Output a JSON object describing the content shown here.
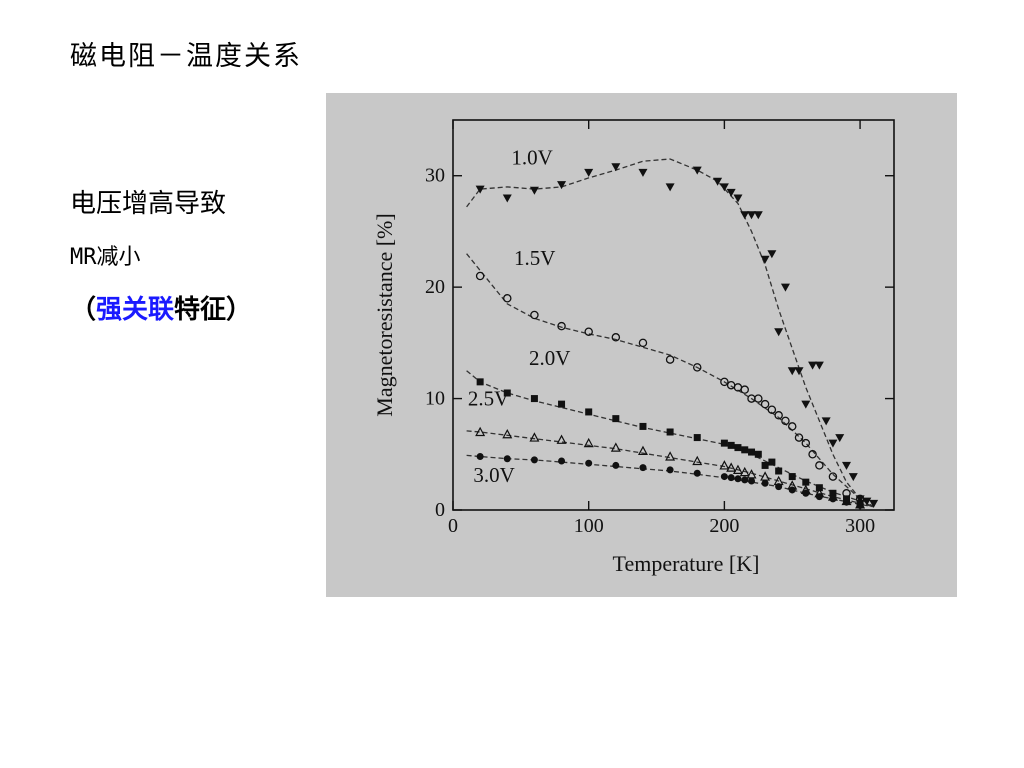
{
  "slide": {
    "title": "磁电阻－温度关系",
    "note_line1": "电压增高导致",
    "note_line2": "MR减小",
    "note_line3_open": "（",
    "note_line3_highlight": "强关联",
    "note_line3_rest": "特征",
    "note_line3_close": "）",
    "highlight_color": "#1a1aff"
  },
  "chart_data": {
    "type": "scatter",
    "title": "",
    "xlabel": "Temperature [K]",
    "ylabel": "Magnetoresistance [%]",
    "xlim": [
      0,
      325
    ],
    "ylim": [
      0,
      35
    ],
    "xticks": [
      0,
      100,
      200,
      300
    ],
    "yticks": [
      0,
      10,
      20,
      30
    ],
    "grid": false,
    "series": [
      {
        "name": "1.0V",
        "marker": "triangle-down",
        "label_at": [
          43,
          31
        ],
        "points": [
          [
            20,
            28.8
          ],
          [
            40,
            28
          ],
          [
            60,
            28.7
          ],
          [
            80,
            29.2
          ],
          [
            100,
            30.3
          ],
          [
            120,
            30.8
          ],
          [
            140,
            30.3
          ],
          [
            160,
            29
          ],
          [
            180,
            30.5
          ],
          [
            195,
            29.5
          ],
          [
            200,
            29
          ],
          [
            205,
            28.5
          ],
          [
            210,
            28
          ],
          [
            215,
            26.5
          ],
          [
            220,
            26.5
          ],
          [
            225,
            26.5
          ],
          [
            230,
            22.5
          ],
          [
            235,
            23
          ],
          [
            240,
            16
          ],
          [
            245,
            20
          ],
          [
            250,
            12.5
          ],
          [
            255,
            12.5
          ],
          [
            260,
            9.5
          ],
          [
            265,
            13
          ],
          [
            270,
            13
          ],
          [
            275,
            8
          ],
          [
            280,
            6
          ],
          [
            285,
            6.5
          ],
          [
            290,
            4
          ],
          [
            295,
            3
          ],
          [
            300,
            1
          ],
          [
            305,
            0.8
          ],
          [
            310,
            0.6
          ]
        ],
        "curve": [
          [
            10,
            27.2
          ],
          [
            20,
            28.8
          ],
          [
            40,
            29
          ],
          [
            60,
            28.8
          ],
          [
            80,
            29
          ],
          [
            100,
            29.8
          ],
          [
            120,
            30.5
          ],
          [
            140,
            31.3
          ],
          [
            160,
            31.5
          ],
          [
            180,
            30.5
          ],
          [
            195,
            29.5
          ],
          [
            210,
            27.5
          ],
          [
            220,
            25
          ],
          [
            230,
            22
          ],
          [
            240,
            18
          ],
          [
            250,
            14.5
          ],
          [
            260,
            11
          ],
          [
            270,
            8
          ],
          [
            280,
            5
          ],
          [
            290,
            2.5
          ],
          [
            300,
            1
          ],
          [
            310,
            0.3
          ]
        ]
      },
      {
        "name": "1.5V",
        "marker": "open-circle",
        "label_at": [
          45,
          22
        ],
        "points": [
          [
            20,
            21
          ],
          [
            40,
            19
          ],
          [
            60,
            17.5
          ],
          [
            80,
            16.5
          ],
          [
            100,
            16
          ],
          [
            120,
            15.5
          ],
          [
            140,
            15
          ],
          [
            160,
            13.5
          ],
          [
            180,
            12.8
          ],
          [
            200,
            11.5
          ],
          [
            205,
            11.2
          ],
          [
            210,
            11
          ],
          [
            215,
            10.8
          ],
          [
            220,
            10
          ],
          [
            225,
            10
          ],
          [
            230,
            9.5
          ],
          [
            235,
            9
          ],
          [
            240,
            8.5
          ],
          [
            245,
            8
          ],
          [
            250,
            7.5
          ],
          [
            255,
            6.5
          ],
          [
            260,
            6
          ],
          [
            265,
            5
          ],
          [
            270,
            4
          ],
          [
            280,
            3
          ],
          [
            290,
            1.5
          ],
          [
            300,
            1
          ]
        ],
        "curve": [
          [
            10,
            23
          ],
          [
            20,
            21.5
          ],
          [
            40,
            18.5
          ],
          [
            60,
            17.2
          ],
          [
            80,
            16.4
          ],
          [
            100,
            15.8
          ],
          [
            120,
            15.3
          ],
          [
            140,
            14.6
          ],
          [
            160,
            13.9
          ],
          [
            180,
            12.8
          ],
          [
            200,
            11.5
          ],
          [
            220,
            10
          ],
          [
            240,
            8.3
          ],
          [
            260,
            6
          ],
          [
            280,
            3.2
          ],
          [
            300,
            1
          ],
          [
            310,
            0.3
          ]
        ]
      },
      {
        "name": "2.0V",
        "marker": "filled-square",
        "label_at": [
          56,
          13
        ],
        "points": [
          [
            20,
            11.5
          ],
          [
            40,
            10.5
          ],
          [
            60,
            10
          ],
          [
            80,
            9.5
          ],
          [
            100,
            8.8
          ],
          [
            120,
            8.2
          ],
          [
            140,
            7.5
          ],
          [
            160,
            7
          ],
          [
            180,
            6.5
          ],
          [
            200,
            6
          ],
          [
            205,
            5.8
          ],
          [
            210,
            5.6
          ],
          [
            215,
            5.4
          ],
          [
            220,
            5.2
          ],
          [
            225,
            5
          ],
          [
            230,
            4
          ],
          [
            235,
            4.3
          ],
          [
            240,
            3.5
          ],
          [
            250,
            3
          ],
          [
            260,
            2.5
          ],
          [
            270,
            2
          ],
          [
            280,
            1.5
          ],
          [
            290,
            1
          ],
          [
            300,
            0.6
          ]
        ],
        "curve": [
          [
            10,
            12.5
          ],
          [
            20,
            11.5
          ],
          [
            40,
            10.5
          ],
          [
            60,
            9.8
          ],
          [
            80,
            9.2
          ],
          [
            100,
            8.6
          ],
          [
            120,
            8
          ],
          [
            140,
            7.4
          ],
          [
            160,
            6.9
          ],
          [
            180,
            6.4
          ],
          [
            200,
            5.9
          ],
          [
            220,
            5
          ],
          [
            240,
            3.8
          ],
          [
            260,
            2.6
          ],
          [
            280,
            1.6
          ],
          [
            300,
            0.8
          ],
          [
            310,
            0.3
          ]
        ]
      },
      {
        "name": "2.5V",
        "marker": "open-triangle",
        "label_at": [
          11,
          9.4
        ],
        "points": [
          [
            20,
            7
          ],
          [
            40,
            6.8
          ],
          [
            60,
            6.5
          ],
          [
            80,
            6.3
          ],
          [
            100,
            6
          ],
          [
            120,
            5.6
          ],
          [
            140,
            5.3
          ],
          [
            160,
            4.8
          ],
          [
            180,
            4.4
          ],
          [
            200,
            4
          ],
          [
            205,
            3.8
          ],
          [
            210,
            3.6
          ],
          [
            215,
            3.4
          ],
          [
            220,
            3.2
          ],
          [
            230,
            3
          ],
          [
            240,
            2.6
          ],
          [
            250,
            2.2
          ],
          [
            260,
            1.8
          ],
          [
            270,
            1.5
          ],
          [
            280,
            1.2
          ],
          [
            290,
            0.8
          ],
          [
            300,
            0.5
          ]
        ],
        "curve": [
          [
            10,
            7.1
          ],
          [
            20,
            7
          ],
          [
            40,
            6.7
          ],
          [
            60,
            6.4
          ],
          [
            80,
            6.1
          ],
          [
            100,
            5.8
          ],
          [
            120,
            5.5
          ],
          [
            140,
            5.1
          ],
          [
            160,
            4.7
          ],
          [
            180,
            4.3
          ],
          [
            200,
            3.9
          ],
          [
            220,
            3.3
          ],
          [
            240,
            2.6
          ],
          [
            260,
            1.9
          ],
          [
            280,
            1.2
          ],
          [
            300,
            0.6
          ],
          [
            310,
            0.3
          ]
        ]
      },
      {
        "name": "3.0V",
        "marker": "filled-circle",
        "label_at": [
          15,
          2.5
        ],
        "points": [
          [
            20,
            4.8
          ],
          [
            40,
            4.6
          ],
          [
            60,
            4.5
          ],
          [
            80,
            4.4
          ],
          [
            100,
            4.2
          ],
          [
            120,
            4
          ],
          [
            140,
            3.8
          ],
          [
            160,
            3.6
          ],
          [
            180,
            3.3
          ],
          [
            200,
            3
          ],
          [
            205,
            2.9
          ],
          [
            210,
            2.8
          ],
          [
            215,
            2.7
          ],
          [
            220,
            2.6
          ],
          [
            230,
            2.4
          ],
          [
            240,
            2.1
          ],
          [
            250,
            1.8
          ],
          [
            260,
            1.5
          ],
          [
            270,
            1.2
          ],
          [
            280,
            1
          ],
          [
            290,
            0.7
          ],
          [
            300,
            0.4
          ]
        ],
        "curve": [
          [
            10,
            4.9
          ],
          [
            20,
            4.8
          ],
          [
            40,
            4.6
          ],
          [
            60,
            4.5
          ],
          [
            80,
            4.3
          ],
          [
            100,
            4.1
          ],
          [
            120,
            3.9
          ],
          [
            140,
            3.7
          ],
          [
            160,
            3.5
          ],
          [
            180,
            3.2
          ],
          [
            200,
            2.9
          ],
          [
            220,
            2.5
          ],
          [
            240,
            2.1
          ],
          [
            260,
            1.5
          ],
          [
            280,
            1
          ],
          [
            300,
            0.5
          ],
          [
            310,
            0.3
          ]
        ]
      }
    ]
  }
}
